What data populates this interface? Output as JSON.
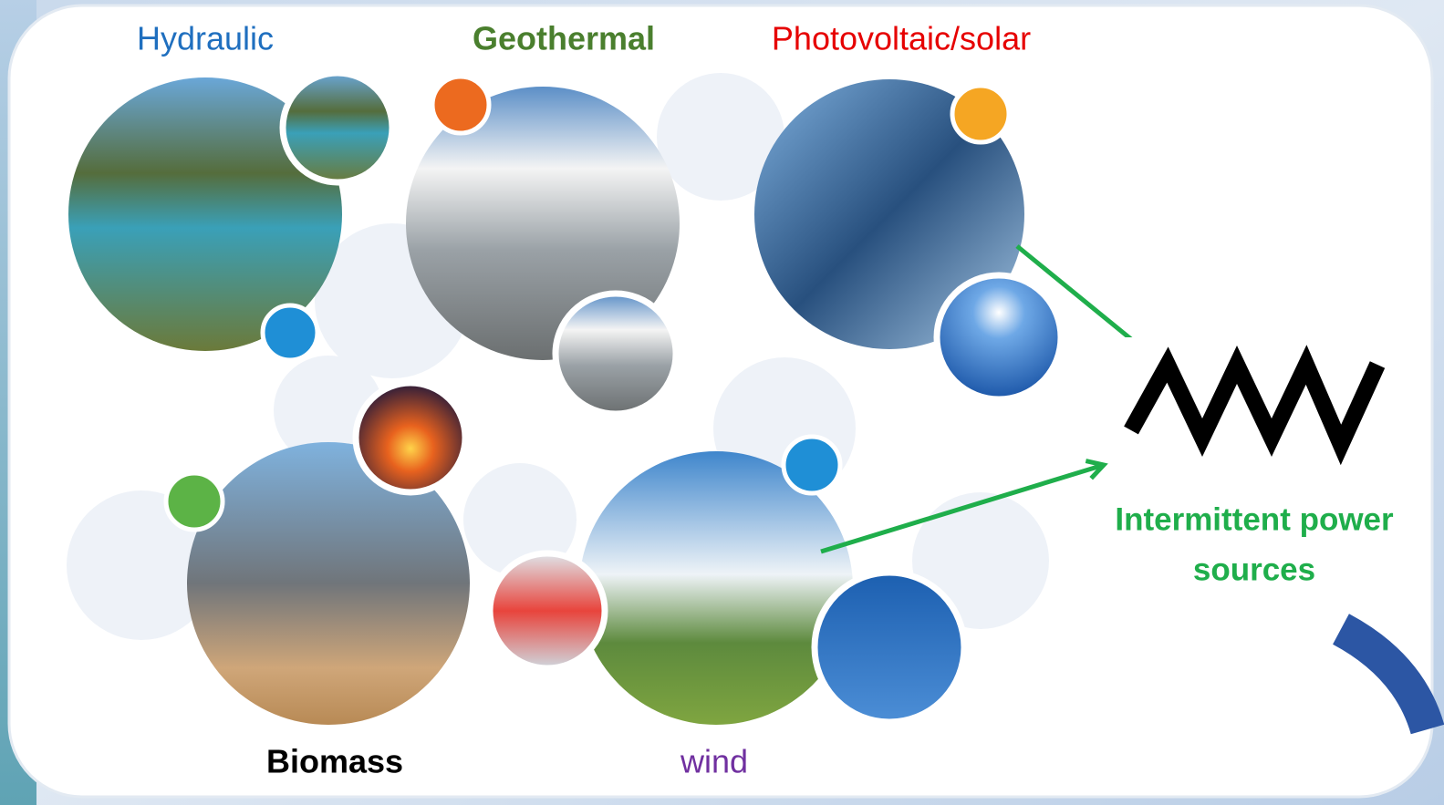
{
  "labels": {
    "hydraulic": "Hydraulic",
    "geothermal": "Geothermal",
    "solar": "Photovoltaic/solar",
    "biomass": "Biomass",
    "wind": "wind"
  },
  "output": {
    "lines": [
      "Intermittent power",
      "sources"
    ]
  }
}
